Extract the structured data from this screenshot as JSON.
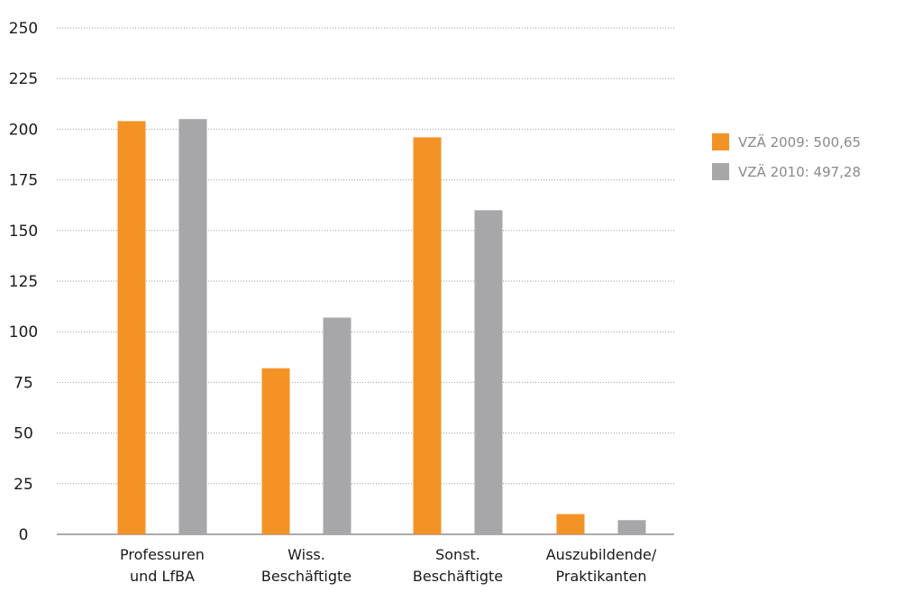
{
  "chart_data": {
    "type": "bar",
    "categories": [
      [
        "Professuren",
        "und LfBA"
      ],
      [
        "Wiss.",
        "Beschäftigte"
      ],
      [
        "Sonst.",
        "Beschäftigte"
      ],
      [
        "Auszubildende/",
        "Praktikanten"
      ]
    ],
    "series": [
      {
        "name": "VZÄ 2009: 500,65",
        "color": "#f39325",
        "values": [
          204,
          82,
          196,
          10
        ]
      },
      {
        "name": "VZÄ 2010: 497,28",
        "color": "#a7a7aa",
        "values": [
          205,
          107,
          160,
          7
        ]
      }
    ],
    "yticks": [
      "0",
      "25",
      "50",
      "75",
      "100",
      "125",
      "150",
      "175",
      "200",
      "225",
      "250"
    ],
    "ylim": [
      0,
      250
    ],
    "grid": true,
    "legend_position": "right"
  }
}
